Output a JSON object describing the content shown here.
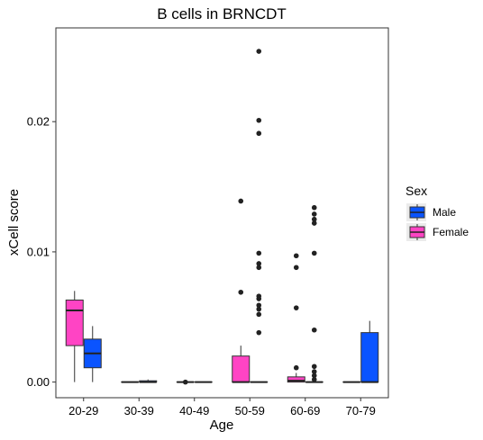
{
  "chart_data": {
    "type": "boxplot",
    "title": "B cells in BRNCDT",
    "xlabel": "Age",
    "ylabel": "xCell score",
    "categories": [
      "20-29",
      "30-39",
      "40-49",
      "50-59",
      "60-69",
      "70-79"
    ],
    "y_ticks": [
      0.0,
      0.01,
      0.02
    ],
    "y_tick_labels": [
      "0.00",
      "0.01",
      "0.02"
    ],
    "ylim": [
      -0.0012,
      0.0272
    ],
    "grid": false,
    "legend": {
      "title": "Sex",
      "position": "right",
      "entries": [
        {
          "name": "Male",
          "color": "#0a54ff"
        },
        {
          "name": "Female",
          "color": "#ff44c4"
        }
      ]
    },
    "series": [
      {
        "name": "Female",
        "color": "#ff44c4",
        "boxes": [
          {
            "category": "20-29",
            "whisker_low": 0.0,
            "q1": 0.0028,
            "median": 0.0055,
            "q3": 0.0063,
            "whisker_high": 0.007,
            "outliers": []
          },
          {
            "category": "30-39",
            "whisker_low": 0.0,
            "q1": 0.0,
            "median": 0.0,
            "q3": 0.0,
            "whisker_high": 0.0,
            "outliers": []
          },
          {
            "category": "40-49",
            "whisker_low": 0.0,
            "q1": 0.0,
            "median": 0.0,
            "q3": 0.0,
            "whisker_high": 0.0,
            "outliers": [
              0.0
            ]
          },
          {
            "category": "50-59",
            "whisker_low": 0.0,
            "q1": 0.0,
            "median": 0.0,
            "q3": 0.002,
            "whisker_high": 0.0028,
            "outliers": [
              0.0069,
              0.0139
            ]
          },
          {
            "category": "60-69",
            "whisker_low": 0.0,
            "q1": 0.0,
            "median": 0.0001,
            "q3": 0.0004,
            "whisker_high": 0.0007,
            "outliers": [
              0.0011,
              0.0057,
              0.0088,
              0.0097
            ]
          },
          {
            "category": "70-79",
            "whisker_low": 0.0,
            "q1": 0.0,
            "median": 0.0,
            "q3": 0.0,
            "whisker_high": 0.0,
            "outliers": []
          }
        ]
      },
      {
        "name": "Male",
        "color": "#0a54ff",
        "boxes": [
          {
            "category": "20-29",
            "whisker_low": 0.0,
            "q1": 0.0011,
            "median": 0.0022,
            "q3": 0.0033,
            "whisker_high": 0.0043,
            "outliers": []
          },
          {
            "category": "30-39",
            "whisker_low": 0.0,
            "q1": 0.0,
            "median": 0.0,
            "q3": 0.0001,
            "whisker_high": 0.0002,
            "outliers": []
          },
          {
            "category": "40-49",
            "whisker_low": 0.0,
            "q1": 0.0,
            "median": 0.0,
            "q3": 0.0,
            "whisker_high": 0.0,
            "outliers": []
          },
          {
            "category": "50-59",
            "whisker_low": 0.0,
            "q1": 0.0,
            "median": 0.0,
            "q3": 0.0,
            "whisker_high": 0.0,
            "outliers": [
              0.0038,
              0.0052,
              0.0056,
              0.0059,
              0.0064,
              0.0066,
              0.0088,
              0.0091,
              0.0099,
              0.0191,
              0.0201,
              0.0254
            ]
          },
          {
            "category": "60-69",
            "whisker_low": 0.0,
            "q1": 0.0,
            "median": 0.0,
            "q3": 0.0,
            "whisker_high": 0.0,
            "outliers": [
              0.0002,
              0.0005,
              0.0008,
              0.0012,
              0.004,
              0.0099,
              0.0122,
              0.0125,
              0.0129,
              0.0134
            ]
          },
          {
            "category": "70-79",
            "whisker_low": 0.0,
            "q1": 0.0,
            "median": 0.0,
            "q3": 0.0038,
            "whisker_high": 0.0047,
            "outliers": []
          }
        ]
      }
    ]
  }
}
